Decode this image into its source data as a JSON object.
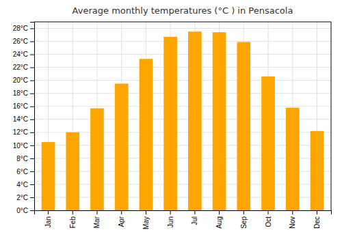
{
  "chart_data": {
    "type": "bar",
    "title": "Average monthly temperatures (°C ) in Pensacola",
    "categories": [
      "Jan",
      "Feb",
      "Mar",
      "Apr",
      "May",
      "Jun",
      "Jul",
      "Aug",
      "Sep",
      "Oct",
      "Nov",
      "Dec"
    ],
    "values": [
      10.5,
      12.0,
      15.7,
      19.5,
      23.3,
      26.7,
      27.5,
      27.4,
      25.9,
      20.6,
      15.8,
      12.2
    ],
    "color": "#FFA500",
    "ylim": [
      0,
      29
    ],
    "yticks": [
      {
        "value": 0,
        "label": "0°C"
      },
      {
        "value": 2,
        "label": "2°C"
      },
      {
        "value": 4,
        "label": "4°C"
      },
      {
        "value": 6,
        "label": "6°C"
      },
      {
        "value": 8,
        "label": "8°C"
      },
      {
        "value": 10,
        "label": "10°C"
      },
      {
        "value": 12,
        "label": "12°C"
      },
      {
        "value": 14,
        "label": "14°C"
      },
      {
        "value": 16,
        "label": "16°C"
      },
      {
        "value": 18,
        "label": "18°C"
      },
      {
        "value": 20,
        "label": "20°C"
      },
      {
        "value": 22,
        "label": "22°C"
      },
      {
        "value": 24,
        "label": "24°C"
      },
      {
        "value": 26,
        "label": "26°C"
      },
      {
        "value": 28,
        "label": "28°C"
      }
    ],
    "grid": true
  }
}
